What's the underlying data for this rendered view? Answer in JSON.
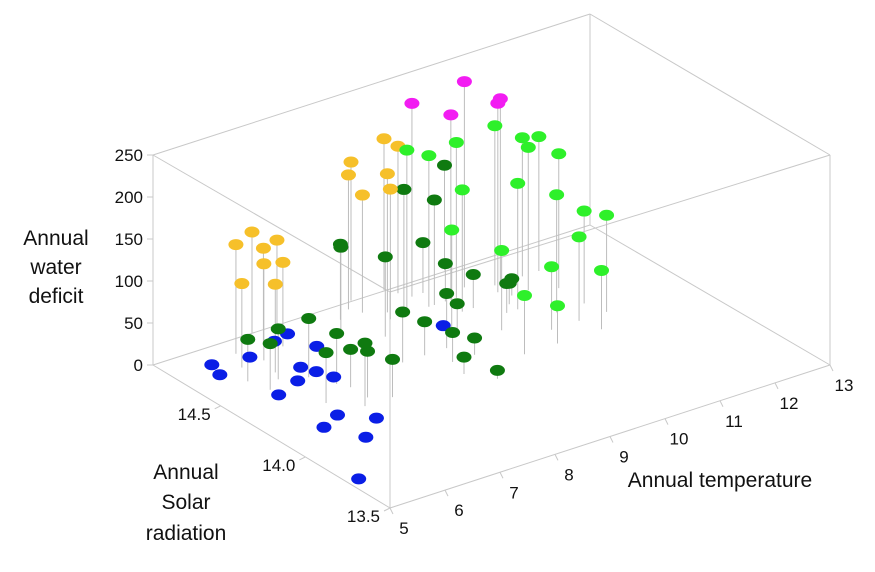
{
  "chart_data": {
    "type": "scatter",
    "subtype": "3d-scatter-with-drop-lines",
    "title": "",
    "xlabel": "Annual temperature",
    "ylabel": [
      "Annual",
      "Solar",
      "radiation"
    ],
    "zlabel": [
      "Annual",
      "water",
      "deficit"
    ],
    "xlim": [
      5,
      13
    ],
    "ylim": [
      13.5,
      14.9
    ],
    "zlim": [
      0,
      250
    ],
    "xticks": [
      "5",
      "6",
      "7",
      "8",
      "9",
      "10",
      "11",
      "12",
      "13"
    ],
    "yticks": [
      "13.5",
      "14.0",
      "14.5"
    ],
    "zticks": [
      "0",
      "50",
      "100",
      "150",
      "200",
      "250"
    ],
    "grid": false,
    "colors": {
      "blue": "#0a1ee6",
      "dark_green": "#0f7a10",
      "orange": "#f6c02a",
      "light_green": "#2ef02a",
      "magenta": "#f21cf2",
      "box": "#c8c8c8",
      "drop_line": "#bdbdbd"
    },
    "series": [
      {
        "color": "blue",
        "points": [
          {
            "x": 5.6,
            "y": 14.7,
            "z": 0
          },
          {
            "x": 5.9,
            "y": 14.45,
            "z": 0
          },
          {
            "x": 6.4,
            "y": 14.5,
            "z": 0
          },
          {
            "x": 6.7,
            "y": 14.58,
            "z": 0
          },
          {
            "x": 6.8,
            "y": 14.52,
            "z": 0
          },
          {
            "x": 6.2,
            "y": 14.2,
            "z": 0
          },
          {
            "x": 6.6,
            "y": 14.1,
            "z": 0
          },
          {
            "x": 6.3,
            "y": 14.75,
            "z": 0
          },
          {
            "x": 6.9,
            "y": 14.8,
            "z": 0
          },
          {
            "x": 7.2,
            "y": 14.82,
            "z": 0
          },
          {
            "x": 6.9,
            "y": 14.45,
            "z": 0
          },
          {
            "x": 5.7,
            "y": 14.78,
            "z": 0
          },
          {
            "x": 5.2,
            "y": 13.75,
            "z": 0
          },
          {
            "x": 6.1,
            "y": 14.0,
            "z": 0
          },
          {
            "x": 9.2,
            "y": 14.55,
            "z": 0
          },
          {
            "x": 7.3,
            "y": 14.68,
            "z": 0
          },
          {
            "x": 5.8,
            "y": 14.15,
            "z": 0
          }
        ]
      },
      {
        "color": "dark_green",
        "points": [
          {
            "x": 5.8,
            "y": 14.6,
            "z": 50
          },
          {
            "x": 5.9,
            "y": 14.5,
            "z": 55
          },
          {
            "x": 6.2,
            "y": 14.55,
            "z": 60
          },
          {
            "x": 6.3,
            "y": 14.3,
            "z": 60
          },
          {
            "x": 6.8,
            "y": 14.4,
            "z": 60
          },
          {
            "x": 6.9,
            "y": 14.25,
            "z": 55
          },
          {
            "x": 6.7,
            "y": 14.2,
            "z": 75
          },
          {
            "x": 6.9,
            "y": 14.35,
            "z": 45
          },
          {
            "x": 7.2,
            "y": 14.2,
            "z": 45
          },
          {
            "x": 6.6,
            "y": 14.5,
            "z": 70
          },
          {
            "x": 7.8,
            "y": 14.7,
            "z": 105
          },
          {
            "x": 8.1,
            "y": 14.8,
            "z": 90
          },
          {
            "x": 8.3,
            "y": 14.6,
            "z": 95
          },
          {
            "x": 8.0,
            "y": 14.4,
            "z": 60
          },
          {
            "x": 8.4,
            "y": 14.4,
            "z": 40
          },
          {
            "x": 8.6,
            "y": 14.3,
            "z": 35
          },
          {
            "x": 8.8,
            "y": 14.4,
            "z": 65
          },
          {
            "x": 8.5,
            "y": 14.2,
            "z": 20
          },
          {
            "x": 9.0,
            "y": 14.3,
            "z": 20
          },
          {
            "x": 8.8,
            "y": 14.1,
            "z": 10
          },
          {
            "x": 9.3,
            "y": 14.5,
            "z": 30
          },
          {
            "x": 9.6,
            "y": 14.8,
            "z": 60
          },
          {
            "x": 9.7,
            "y": 14.7,
            "z": 45
          },
          {
            "x": 9.9,
            "y": 14.6,
            "z": 40
          },
          {
            "x": 10.2,
            "y": 14.5,
            "z": 35
          },
          {
            "x": 10.4,
            "y": 14.55,
            "z": 25
          },
          {
            "x": 10.6,
            "y": 14.6,
            "z": 20
          },
          {
            "x": 9.1,
            "y": 14.75,
            "z": 140
          },
          {
            "x": 9.5,
            "y": 14.7,
            "z": 125
          },
          {
            "x": 10.3,
            "y": 14.9,
            "z": 125
          }
        ]
      },
      {
        "color": "orange",
        "points": [
          {
            "x": 6.2,
            "y": 14.8,
            "z": 130
          },
          {
            "x": 6.4,
            "y": 14.7,
            "z": 115
          },
          {
            "x": 6.7,
            "y": 14.8,
            "z": 115
          },
          {
            "x": 6.9,
            "y": 14.75,
            "z": 100
          },
          {
            "x": 6.3,
            "y": 14.6,
            "z": 105
          },
          {
            "x": 6.0,
            "y": 14.7,
            "z": 100
          },
          {
            "x": 6.8,
            "y": 14.9,
            "z": 120
          },
          {
            "x": 7.1,
            "y": 14.85,
            "z": 110
          },
          {
            "x": 8.4,
            "y": 14.85,
            "z": 160
          },
          {
            "x": 8.6,
            "y": 14.9,
            "z": 165
          },
          {
            "x": 8.5,
            "y": 14.8,
            "z": 140
          },
          {
            "x": 8.7,
            "y": 14.7,
            "z": 155
          },
          {
            "x": 8.8,
            "y": 14.75,
            "z": 165
          },
          {
            "x": 9.2,
            "y": 14.9,
            "z": 180
          },
          {
            "x": 9.3,
            "y": 14.85,
            "z": 175
          }
        ]
      },
      {
        "color": "light_green",
        "points": [
          {
            "x": 9.0,
            "y": 14.7,
            "z": 195
          },
          {
            "x": 9.4,
            "y": 14.7,
            "z": 180
          },
          {
            "x": 9.9,
            "y": 14.7,
            "z": 185
          },
          {
            "x": 10.6,
            "y": 14.7,
            "z": 190
          },
          {
            "x": 10.9,
            "y": 14.6,
            "z": 170
          },
          {
            "x": 11.1,
            "y": 14.7,
            "z": 165
          },
          {
            "x": 11.3,
            "y": 14.55,
            "z": 160
          },
          {
            "x": 11.4,
            "y": 14.7,
            "z": 160
          },
          {
            "x": 9.7,
            "y": 14.6,
            "z": 145
          },
          {
            "x": 10.4,
            "y": 14.5,
            "z": 150
          },
          {
            "x": 10.8,
            "y": 14.4,
            "z": 140
          },
          {
            "x": 9.2,
            "y": 14.5,
            "z": 120
          },
          {
            "x": 9.8,
            "y": 14.4,
            "z": 95
          },
          {
            "x": 10.4,
            "y": 14.3,
            "z": 75
          },
          {
            "x": 10.9,
            "y": 14.3,
            "z": 100
          },
          {
            "x": 11.3,
            "y": 14.4,
            "z": 110
          },
          {
            "x": 11.0,
            "y": 14.2,
            "z": 70
          },
          {
            "x": 10.2,
            "y": 14.2,
            "z": 45
          },
          {
            "x": 9.6,
            "y": 14.2,
            "z": 70
          },
          {
            "x": 11.4,
            "y": 14.3,
            "z": 115
          }
        ]
      },
      {
        "color": "magenta",
        "points": [
          {
            "x": 9.4,
            "y": 14.8,
            "z": 230
          },
          {
            "x": 9.8,
            "y": 14.7,
            "z": 220
          },
          {
            "x": 10.2,
            "y": 14.75,
            "z": 245
          },
          {
            "x": 10.5,
            "y": 14.65,
            "z": 225
          },
          {
            "x": 10.7,
            "y": 14.7,
            "z": 220
          }
        ]
      }
    ]
  }
}
